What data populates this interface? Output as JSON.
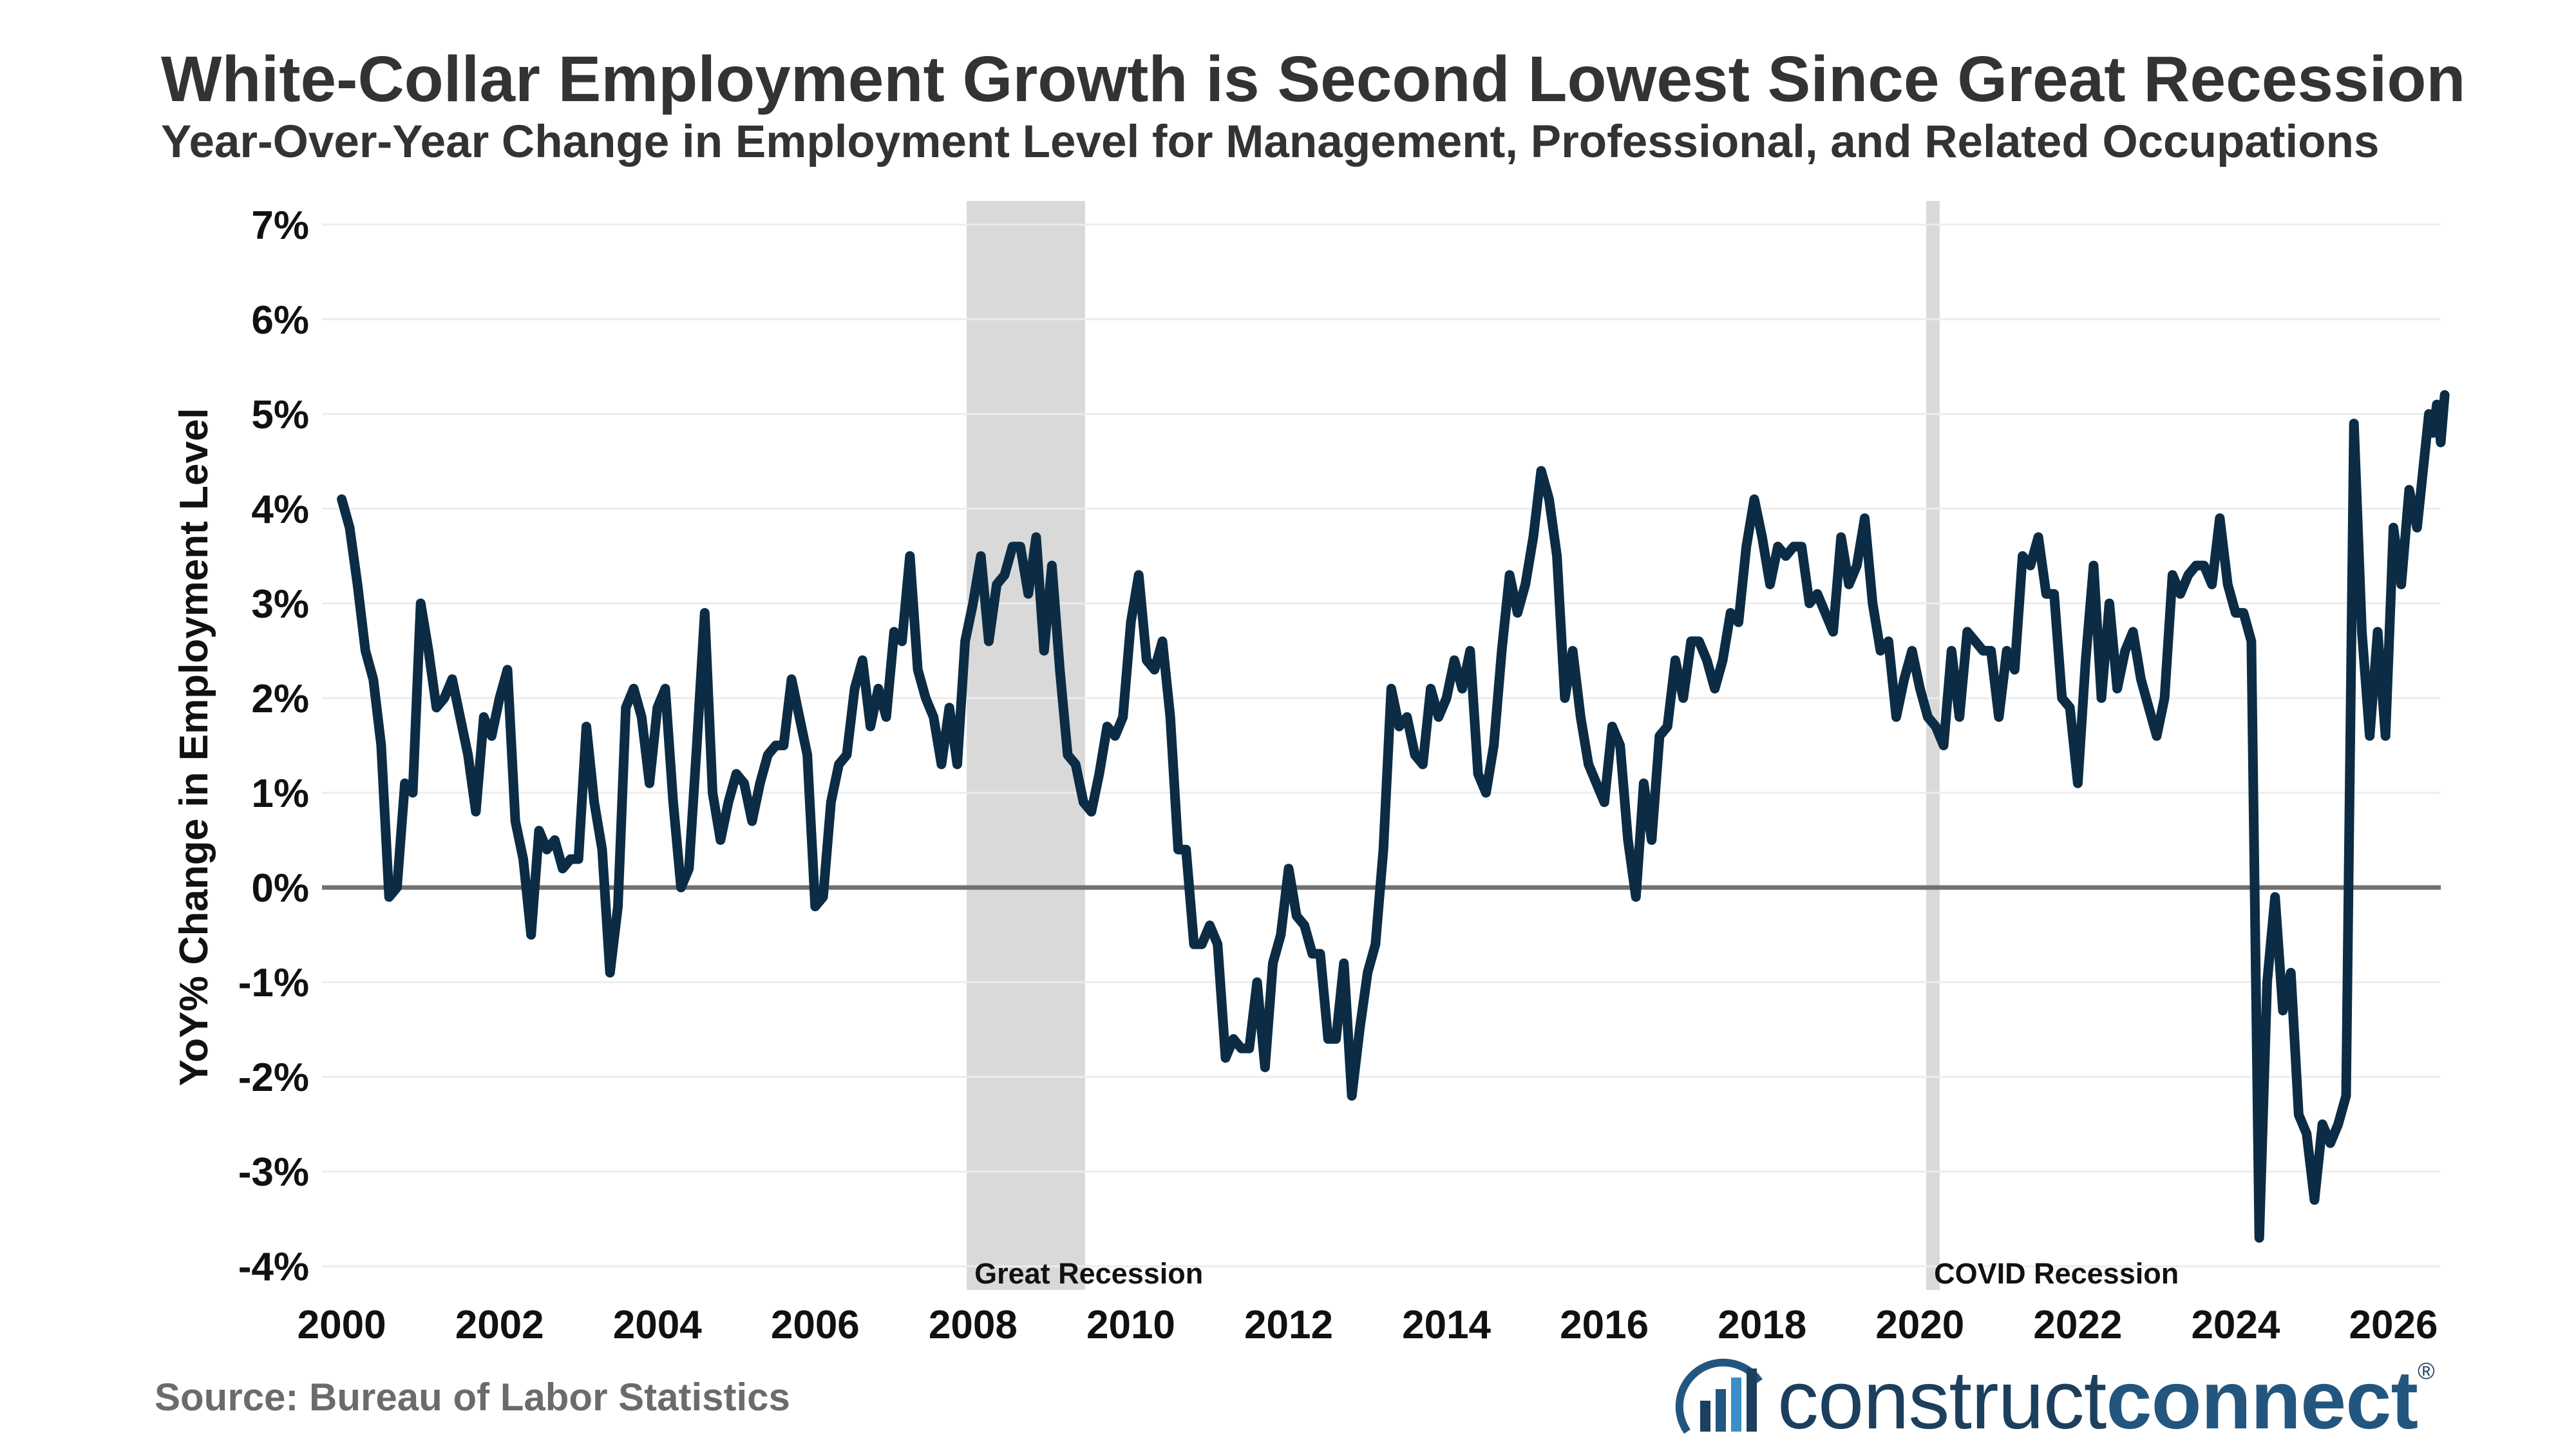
{
  "title": "White-Collar Employment Growth is Second Lowest Since Great Recession",
  "subtitle": "Year-Over-Year Change in Employment Level for Management, Professional, and Related Occupations",
  "source": "Source: Bureau of Labor Statistics",
  "logo": {
    "light": "construct",
    "bold": "connect",
    "mark": "®"
  },
  "colors": {
    "line": "#0b2c44",
    "shade": "#d9d9d9",
    "zero": "#707070",
    "grid": "#ececec",
    "text": "#111111"
  },
  "chart_data": {
    "type": "line",
    "title": "White-Collar Employment Growth is Second Lowest Since Great Recession",
    "subtitle": "Year-Over-Year Change in Employment Level for Management, Professional, and Related Occupations",
    "xlabel": "",
    "ylabel": "YoY% Change in Employment Level",
    "xlim": [
      1999.75,
      2026.6
    ],
    "ylim": [
      -4.25,
      7.25
    ],
    "x_ticks": [
      2000,
      2002,
      2004,
      2006,
      2008,
      2010,
      2012,
      2014,
      2016,
      2018,
      2020,
      2022,
      2024,
      2026
    ],
    "y_ticks": [
      -4,
      -3,
      -2,
      -1,
      0,
      1,
      2,
      3,
      4,
      5,
      6,
      7
    ],
    "y_tick_labels": [
      "-4%",
      "-3%",
      "-2%",
      "-1%",
      "0%",
      "1%",
      "2%",
      "3%",
      "4%",
      "5%",
      "6%",
      "7%"
    ],
    "grid": "horizontal",
    "shaded_periods": [
      {
        "label": "Great Recession",
        "start": 2007.92,
        "end": 2009.42
      },
      {
        "label": "COVID Recession",
        "start": 2020.08,
        "end": 2020.25
      }
    ],
    "series": [
      {
        "values": [
          [
            2000.0,
            4.1
          ],
          [
            2000.1,
            3.8
          ],
          [
            2000.2,
            3.2
          ],
          [
            2000.3,
            2.5
          ],
          [
            2000.4,
            2.2
          ],
          [
            2000.5,
            1.5
          ],
          [
            2000.6,
            -0.1
          ],
          [
            2000.7,
            0.0
          ],
          [
            2000.8,
            1.1
          ],
          [
            2000.9,
            1.0
          ],
          [
            2001.0,
            3.0
          ],
          [
            2001.1,
            2.5
          ],
          [
            2001.2,
            1.9
          ],
          [
            2001.3,
            2.0
          ],
          [
            2001.4,
            2.2
          ],
          [
            2001.5,
            1.8
          ],
          [
            2001.6,
            1.4
          ],
          [
            2001.7,
            0.8
          ],
          [
            2001.8,
            1.8
          ],
          [
            2001.9,
            1.6
          ],
          [
            2002.0,
            2.0
          ],
          [
            2002.1,
            2.3
          ],
          [
            2002.2,
            0.7
          ],
          [
            2002.3,
            0.3
          ],
          [
            2002.4,
            -0.5
          ],
          [
            2002.5,
            0.6
          ],
          [
            2002.6,
            0.4
          ],
          [
            2002.7,
            0.5
          ],
          [
            2002.8,
            0.2
          ],
          [
            2002.9,
            0.3
          ],
          [
            2003.0,
            0.3
          ],
          [
            2003.1,
            1.7
          ],
          [
            2003.2,
            0.9
          ],
          [
            2003.3,
            0.4
          ],
          [
            2003.4,
            -0.9
          ],
          [
            2003.5,
            -0.2
          ],
          [
            2003.6,
            1.9
          ],
          [
            2003.7,
            2.1
          ],
          [
            2003.8,
            1.8
          ],
          [
            2003.9,
            1.1
          ],
          [
            2004.0,
            1.9
          ],
          [
            2004.1,
            2.1
          ],
          [
            2004.2,
            0.9
          ],
          [
            2004.3,
            0.0
          ],
          [
            2004.4,
            0.2
          ],
          [
            2004.5,
            1.5
          ],
          [
            2004.6,
            2.9
          ],
          [
            2004.7,
            1.0
          ],
          [
            2004.8,
            0.5
          ],
          [
            2004.9,
            0.9
          ],
          [
            2005.0,
            1.2
          ],
          [
            2005.1,
            1.1
          ],
          [
            2005.2,
            0.7
          ],
          [
            2005.3,
            1.1
          ],
          [
            2005.4,
            1.4
          ],
          [
            2005.5,
            1.5
          ],
          [
            2005.6,
            1.5
          ],
          [
            2005.7,
            2.2
          ],
          [
            2005.8,
            1.8
          ],
          [
            2005.9,
            1.4
          ],
          [
            2006.0,
            -0.2
          ],
          [
            2006.1,
            -0.1
          ],
          [
            2006.2,
            0.9
          ],
          [
            2006.3,
            1.3
          ],
          [
            2006.4,
            1.4
          ],
          [
            2006.5,
            2.1
          ],
          [
            2006.6,
            2.4
          ],
          [
            2006.7,
            1.7
          ],
          [
            2006.8,
            2.1
          ],
          [
            2006.9,
            1.8
          ],
          [
            2007.0,
            2.7
          ],
          [
            2007.1,
            2.6
          ],
          [
            2007.2,
            3.5
          ],
          [
            2007.3,
            2.3
          ],
          [
            2007.4,
            2.0
          ],
          [
            2007.5,
            1.8
          ],
          [
            2007.6,
            1.3
          ],
          [
            2007.7,
            1.9
          ],
          [
            2007.8,
            1.3
          ],
          [
            2007.9,
            2.6
          ],
          [
            2008.0,
            3.0
          ],
          [
            2008.1,
            3.5
          ],
          [
            2008.2,
            2.6
          ],
          [
            2008.3,
            3.2
          ],
          [
            2008.4,
            3.3
          ],
          [
            2008.5,
            3.6
          ],
          [
            2008.6,
            3.6
          ],
          [
            2008.7,
            3.1
          ],
          [
            2008.8,
            3.7
          ],
          [
            2008.9,
            2.5
          ],
          [
            2009.0,
            3.4
          ],
          [
            2009.1,
            2.3
          ],
          [
            2009.2,
            1.4
          ],
          [
            2009.3,
            1.3
          ],
          [
            2009.4,
            0.9
          ],
          [
            2009.5,
            0.8
          ],
          [
            2009.6,
            1.2
          ],
          [
            2009.7,
            1.7
          ],
          [
            2009.8,
            1.6
          ],
          [
            2009.9,
            1.8
          ],
          [
            2010.0,
            2.8
          ],
          [
            2010.1,
            3.3
          ],
          [
            2010.2,
            2.4
          ],
          [
            2010.3,
            2.3
          ],
          [
            2010.4,
            2.6
          ],
          [
            2010.5,
            1.8
          ],
          [
            2010.6,
            0.4
          ],
          [
            2010.7,
            0.4
          ],
          [
            2010.8,
            -0.6
          ],
          [
            2010.9,
            -0.6
          ],
          [
            2011.0,
            -0.4
          ],
          [
            2011.1,
            -0.6
          ],
          [
            2011.2,
            -1.8
          ],
          [
            2011.3,
            -1.6
          ],
          [
            2011.4,
            -1.7
          ],
          [
            2011.5,
            -1.7
          ],
          [
            2011.6,
            -1.0
          ],
          [
            2011.7,
            -1.9
          ],
          [
            2011.8,
            -0.8
          ],
          [
            2011.9,
            -0.5
          ],
          [
            2012.0,
            0.2
          ],
          [
            2012.1,
            -0.3
          ],
          [
            2012.2,
            -0.4
          ],
          [
            2012.3,
            -0.7
          ],
          [
            2012.4,
            -0.7
          ],
          [
            2012.5,
            -1.6
          ],
          [
            2012.6,
            -1.6
          ],
          [
            2012.7,
            -0.8
          ],
          [
            2012.8,
            -2.2
          ],
          [
            2012.9,
            -1.5
          ],
          [
            2013.0,
            -0.9
          ],
          [
            2013.1,
            -0.6
          ],
          [
            2013.2,
            0.4
          ],
          [
            2013.3,
            2.1
          ],
          [
            2013.4,
            1.7
          ],
          [
            2013.5,
            1.8
          ],
          [
            2013.6,
            1.4
          ],
          [
            2013.7,
            1.3
          ],
          [
            2013.8,
            2.1
          ],
          [
            2013.9,
            1.8
          ],
          [
            2014.0,
            2.0
          ],
          [
            2014.1,
            2.4
          ],
          [
            2014.2,
            2.1
          ],
          [
            2014.3,
            2.5
          ],
          [
            2014.4,
            1.2
          ],
          [
            2014.5,
            1.0
          ],
          [
            2014.6,
            1.5
          ],
          [
            2014.7,
            2.5
          ],
          [
            2014.8,
            3.3
          ],
          [
            2014.9,
            2.9
          ],
          [
            2015.0,
            3.2
          ],
          [
            2015.1,
            3.7
          ],
          [
            2015.2,
            4.4
          ],
          [
            2015.3,
            4.1
          ],
          [
            2015.4,
            3.5
          ],
          [
            2015.5,
            2.0
          ],
          [
            2015.6,
            2.5
          ],
          [
            2015.7,
            1.8
          ],
          [
            2015.8,
            1.3
          ],
          [
            2015.9,
            1.1
          ],
          [
            2016.0,
            0.9
          ],
          [
            2016.1,
            1.7
          ],
          [
            2016.2,
            1.5
          ],
          [
            2016.3,
            0.5
          ],
          [
            2016.4,
            -0.1
          ],
          [
            2016.5,
            1.1
          ],
          [
            2016.6,
            0.5
          ],
          [
            2016.7,
            1.6
          ],
          [
            2016.8,
            1.7
          ],
          [
            2016.9,
            2.4
          ],
          [
            2017.0,
            2.0
          ],
          [
            2017.1,
            2.6
          ],
          [
            2017.2,
            2.6
          ],
          [
            2017.3,
            2.4
          ],
          [
            2017.4,
            2.1
          ],
          [
            2017.5,
            2.4
          ],
          [
            2017.6,
            2.9
          ],
          [
            2017.7,
            2.8
          ],
          [
            2017.8,
            3.6
          ],
          [
            2017.9,
            4.1
          ],
          [
            2018.0,
            3.7
          ],
          [
            2018.1,
            3.2
          ],
          [
            2018.2,
            3.6
          ],
          [
            2018.3,
            3.5
          ],
          [
            2018.4,
            3.6
          ],
          [
            2018.5,
            3.6
          ],
          [
            2018.6,
            3.0
          ],
          [
            2018.7,
            3.1
          ],
          [
            2018.8,
            2.9
          ],
          [
            2018.9,
            2.7
          ],
          [
            2019.0,
            3.7
          ],
          [
            2019.1,
            3.2
          ],
          [
            2019.2,
            3.4
          ],
          [
            2019.3,
            3.9
          ],
          [
            2019.4,
            3.0
          ],
          [
            2019.5,
            2.5
          ],
          [
            2019.6,
            2.6
          ],
          [
            2019.7,
            1.8
          ],
          [
            2019.8,
            2.2
          ],
          [
            2019.9,
            2.5
          ],
          [
            2020.0,
            2.1
          ],
          [
            2020.1,
            1.8
          ],
          [
            2020.2,
            1.7
          ],
          [
            2020.3,
            1.5
          ],
          [
            2020.4,
            2.5
          ],
          [
            2020.5,
            1.8
          ],
          [
            2020.6,
            2.7
          ],
          [
            2020.7,
            2.6
          ],
          [
            2020.8,
            2.5
          ],
          [
            2020.9,
            2.5
          ],
          [
            2021.0,
            1.8
          ],
          [
            2021.1,
            2.5
          ],
          [
            2021.2,
            2.3
          ],
          [
            2021.3,
            3.5
          ],
          [
            2021.4,
            3.4
          ],
          [
            2021.5,
            3.7
          ],
          [
            2021.6,
            3.1
          ],
          [
            2021.7,
            3.1
          ],
          [
            2021.8,
            2.0
          ],
          [
            2021.9,
            1.9
          ],
          [
            2022.0,
            1.1
          ],
          [
            2022.1,
            2.4
          ],
          [
            2022.2,
            3.4
          ],
          [
            2022.3,
            2.0
          ],
          [
            2022.4,
            3.0
          ],
          [
            2022.5,
            2.1
          ],
          [
            2022.6,
            2.5
          ],
          [
            2022.7,
            2.7
          ],
          [
            2022.8,
            2.2
          ],
          [
            2022.9,
            1.9
          ],
          [
            2023.0,
            1.6
          ],
          [
            2023.1,
            2.0
          ],
          [
            2023.2,
            3.3
          ],
          [
            2023.3,
            3.1
          ],
          [
            2023.4,
            3.3
          ],
          [
            2023.5,
            3.4
          ],
          [
            2023.6,
            3.4
          ],
          [
            2023.7,
            3.2
          ],
          [
            2023.8,
            3.9
          ],
          [
            2023.9,
            3.2
          ],
          [
            2024.0,
            2.9
          ],
          [
            2024.1,
            2.9
          ],
          [
            2024.2,
            2.6
          ],
          [
            2024.3,
            -3.7
          ],
          [
            2024.4,
            -1.0
          ],
          [
            2024.5,
            -0.1
          ],
          [
            2024.6,
            -1.3
          ],
          [
            2024.7,
            -0.9
          ],
          [
            2024.8,
            -2.4
          ],
          [
            2024.9,
            -2.6
          ],
          [
            2025.0,
            -3.3
          ],
          [
            2025.1,
            -2.5
          ],
          [
            2025.2,
            -2.7
          ],
          [
            2025.3,
            -2.5
          ],
          [
            2025.4,
            -2.2
          ],
          [
            2025.5,
            4.9
          ],
          [
            2025.6,
            2.7
          ],
          [
            2025.7,
            1.6
          ],
          [
            2025.8,
            2.7
          ],
          [
            2025.9,
            1.6
          ],
          [
            2026.0,
            3.8
          ],
          [
            2026.1,
            3.2
          ],
          [
            2026.2,
            4.2
          ],
          [
            2026.3,
            3.8
          ],
          [
            2026.4,
            4.6
          ],
          [
            2026.45,
            5.0
          ],
          [
            2026.5,
            4.8
          ],
          [
            2026.55,
            5.1
          ],
          [
            2026.6,
            4.7
          ],
          [
            2026.65,
            5.2
          ]
        ]
      }
    ],
    "annotations": [
      "Great Recession",
      "COVID Recession"
    ]
  }
}
